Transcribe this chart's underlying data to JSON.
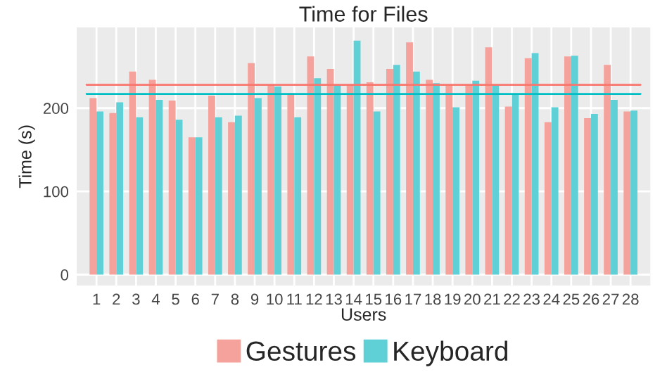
{
  "chart_data": {
    "type": "bar",
    "title": "Time for Files",
    "xlabel": "Users",
    "ylabel": "Time (s)",
    "categories": [
      "1",
      "2",
      "3",
      "4",
      "5",
      "6",
      "7",
      "8",
      "9",
      "10",
      "11",
      "12",
      "13",
      "14",
      "15",
      "16",
      "17",
      "18",
      "19",
      "20",
      "21",
      "22",
      "23",
      "24",
      "25",
      "26",
      "27",
      "28"
    ],
    "series": [
      {
        "name": "Gestures",
        "color": "#f5a29c",
        "values": [
          212,
          194,
          244,
          234,
          209,
          165,
          215,
          183,
          254,
          228,
          218,
          262,
          247,
          228,
          231,
          247,
          279,
          234,
          228,
          228,
          273,
          202,
          260,
          183,
          262,
          188,
          252,
          196
        ]
      },
      {
        "name": "Keyboard",
        "color": "#5fd0d5",
        "values": [
          196,
          207,
          189,
          210,
          186,
          165,
          189,
          191,
          212,
          226,
          189,
          236,
          228,
          281,
          196,
          252,
          244,
          230,
          201,
          233,
          228,
          217,
          266,
          201,
          263,
          193,
          210,
          197
        ]
      }
    ],
    "ref_lines": [
      {
        "axis": "y",
        "value": 228,
        "color": "#f8766d"
      },
      {
        "axis": "y",
        "value": 217,
        "color": "#00bfc4"
      }
    ],
    "ylim": [
      -13,
      297
    ],
    "yticks": [
      0,
      100,
      200
    ],
    "grid": true,
    "legend": "bottom"
  }
}
